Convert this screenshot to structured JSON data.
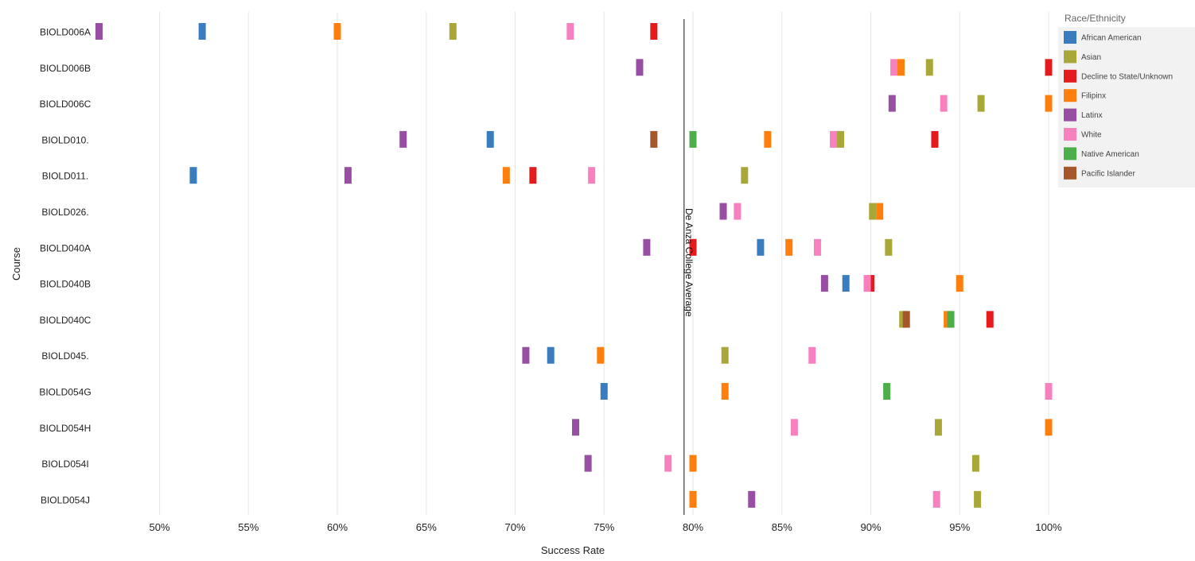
{
  "chart_data": {
    "type": "scatter",
    "xlabel": "Success Rate",
    "ylabel": "Course",
    "xlim": [
      46.5,
      103.5
    ],
    "x_ticks": [
      50,
      55,
      60,
      65,
      70,
      75,
      80,
      85,
      90,
      95,
      100
    ],
    "x_tick_labels": [
      "50%",
      "55%",
      "60%",
      "65%",
      "70%",
      "75%",
      "80%",
      "85%",
      "90%",
      "95%",
      "100%"
    ],
    "grid": "vertical",
    "legend_placement": "top-right",
    "legend_title": "Race/Ethnicity",
    "categories": [
      "BIOLD006A",
      "BIOLD006B",
      "BIOLD006C",
      "BIOLD010.",
      "BIOLD011.",
      "BIOLD026.",
      "BIOLD040A",
      "BIOLD040B",
      "BIOLD040C",
      "BIOLD045.",
      "BIOLD054G",
      "BIOLD054H",
      "BIOLD054I",
      "BIOLD054J"
    ],
    "reference_line": {
      "value": 79.5,
      "label": "De Anza College Average"
    },
    "series": [
      {
        "name": "African American",
        "color": "#3a7dbf",
        "values": [
          52.4,
          null,
          null,
          68.6,
          51.9,
          null,
          83.8,
          88.6,
          null,
          72.0,
          75.0,
          null,
          null,
          null
        ]
      },
      {
        "name": "Asian",
        "color": "#aaa739",
        "values": [
          66.5,
          93.3,
          96.2,
          88.3,
          82.9,
          90.1,
          91.0,
          null,
          91.8,
          81.8,
          null,
          93.8,
          95.9,
          96.0
        ]
      },
      {
        "name": "Decline to State/Unknown",
        "color": "#e41a1c",
        "values": [
          77.8,
          100.0,
          null,
          93.6,
          71.0,
          null,
          80.0,
          90.0,
          96.7,
          null,
          null,
          null,
          null,
          null
        ]
      },
      {
        "name": "Filipinx",
        "color": "#ff7f0e",
        "values": [
          60.0,
          91.7,
          100.0,
          84.2,
          69.5,
          90.5,
          85.4,
          95.0,
          94.3,
          74.8,
          81.8,
          100.0,
          80.0,
          80.0
        ]
      },
      {
        "name": "Latinx",
        "color": "#984ea3",
        "values": [
          46.6,
          77.0,
          91.2,
          63.7,
          60.6,
          81.7,
          77.4,
          87.4,
          null,
          70.6,
          null,
          73.4,
          74.1,
          83.3
        ]
      },
      {
        "name": "White",
        "color": "#f781bf",
        "values": [
          73.1,
          91.3,
          94.1,
          87.9,
          74.3,
          82.5,
          87.0,
          89.8,
          null,
          86.7,
          100.0,
          85.7,
          78.6,
          93.7
        ]
      },
      {
        "name": "Native American",
        "color": "#4daf4a",
        "values": [
          null,
          null,
          null,
          80.0,
          null,
          null,
          null,
          null,
          94.5,
          null,
          90.9,
          null,
          null,
          null
        ]
      },
      {
        "name": "Pacific Islander",
        "color": "#a65628",
        "values": [
          null,
          null,
          null,
          77.8,
          null,
          null,
          null,
          null,
          92.0,
          null,
          null,
          null,
          null,
          null
        ]
      }
    ]
  }
}
